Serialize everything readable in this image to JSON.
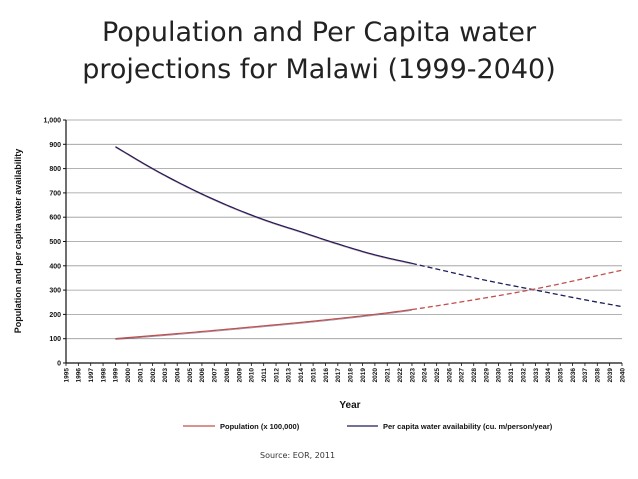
{
  "slide": {
    "title_line1": "Population and Per Capita water",
    "title_line2": "projections for Malawi (1999-2040)",
    "source": "Source: EOR, 2011"
  },
  "colors": {
    "population": "#c0504d",
    "water": "#1f1f5c",
    "grid": "#999999",
    "axis": "#111111"
  },
  "chart_data": {
    "type": "line",
    "title": "",
    "xlabel": "Year",
    "ylabel": "Population and per capita water availability",
    "xlim": [
      1995,
      2040
    ],
    "ylim": [
      0,
      1000
    ],
    "yticks": [
      0,
      100,
      200,
      300,
      400,
      500,
      600,
      700,
      800,
      900,
      1000
    ],
    "ytick_labels": [
      "0",
      "100",
      "200",
      "300",
      "400",
      "500",
      "600",
      "700",
      "800",
      "900",
      "1,000"
    ],
    "grid": "horizontal",
    "legend_position": "bottom",
    "x": [
      1995,
      1996,
      1997,
      1998,
      1999,
      2000,
      2001,
      2002,
      2003,
      2004,
      2005,
      2006,
      2007,
      2008,
      2009,
      2010,
      2011,
      2012,
      2013,
      2014,
      2015,
      2016,
      2017,
      2018,
      2019,
      2020,
      2021,
      2022,
      2023,
      2024,
      2025,
      2026,
      2027,
      2028,
      2029,
      2030,
      2031,
      2032,
      2033,
      2034,
      2035,
      2036,
      2037,
      2038,
      2039,
      2040
    ],
    "projection_start": 2023,
    "series": [
      {
        "name": "Population (x 100,000)",
        "color": "#c0504d",
        "x": [
          1999,
          2005,
          2010,
          2015,
          2020,
          2023,
          2028,
          2033,
          2040
        ],
        "y": [
          100,
          125,
          148,
          172,
          200,
          220,
          260,
          305,
          382
        ]
      },
      {
        "name": "Per capita water availability (cu. m/person/year)",
        "color": "#1f1f5c",
        "x": [
          1999,
          2002,
          2005,
          2008,
          2011,
          2014,
          2017,
          2020,
          2023,
          2026,
          2029,
          2033,
          2037,
          2040
        ],
        "y": [
          890,
          800,
          720,
          650,
          590,
          540,
          490,
          445,
          410,
          375,
          340,
          300,
          260,
          232
        ]
      }
    ]
  }
}
